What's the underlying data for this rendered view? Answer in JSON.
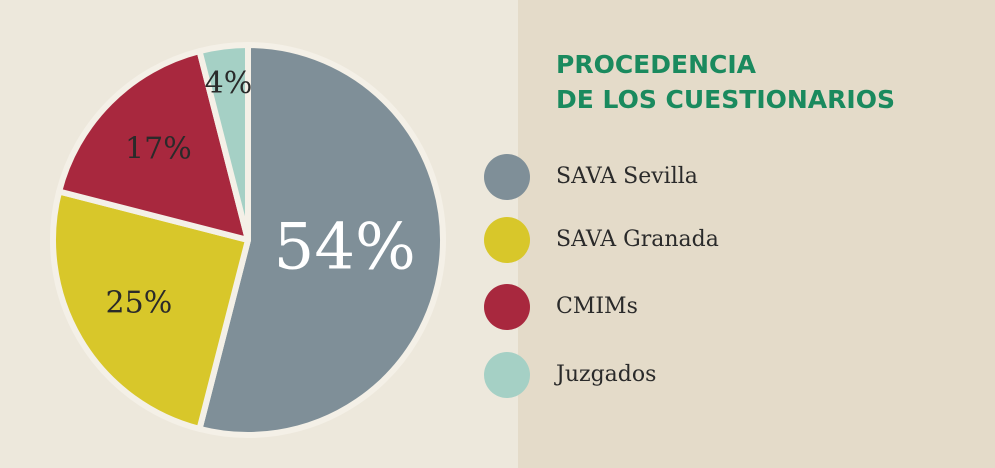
{
  "chart_data": {
    "type": "pie",
    "title": [
      "PROCEDENCIA",
      "DE LOS CUESTIONARIOS"
    ],
    "categories": [
      "SAVA Sevilla",
      "SAVA Granada",
      "CMIMs",
      "Juzgados"
    ],
    "values": [
      54,
      25,
      17,
      4
    ],
    "value_labels": [
      "54%",
      "25%",
      "17%",
      "4%"
    ],
    "colors": [
      "#7f8f98",
      "#d8c72a",
      "#a8283e",
      "#a5d0c5"
    ]
  }
}
